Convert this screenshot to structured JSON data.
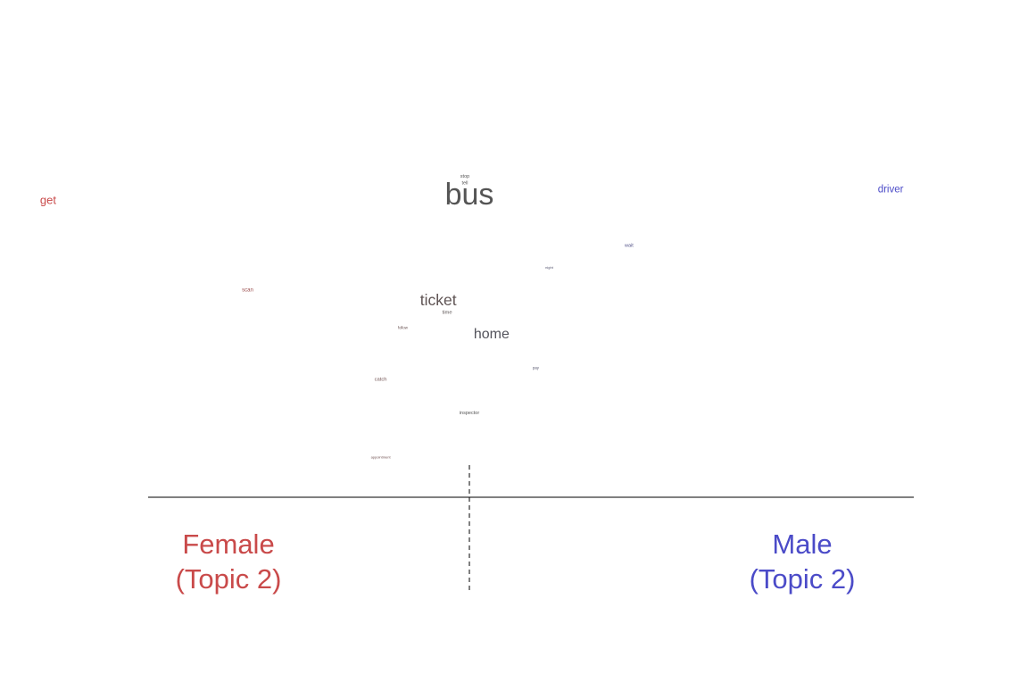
{
  "chart_data": {
    "type": "scatter",
    "words": [
      {
        "text": "bus",
        "x": 0.0,
        "y": 0.97,
        "weight": 1.0
      },
      {
        "text": "stop",
        "x": -0.01,
        "y": 1.06,
        "weight": 0.05
      },
      {
        "text": "tell",
        "x": -0.01,
        "y": 1.03,
        "weight": 0.05
      },
      {
        "text": "driver",
        "x": 0.95,
        "y": 1.0,
        "weight": 0.25
      },
      {
        "text": "get",
        "x": -0.95,
        "y": 0.95,
        "weight": 0.3
      },
      {
        "text": "wait",
        "x": 0.36,
        "y": 0.75,
        "weight": 0.05
      },
      {
        "text": "night",
        "x": 0.18,
        "y": 0.65,
        "weight": 0.0
      },
      {
        "text": "scan",
        "x": -0.5,
        "y": 0.55,
        "weight": 0.07
      },
      {
        "text": "ticket",
        "x": -0.07,
        "y": 0.5,
        "weight": 0.45
      },
      {
        "text": "time",
        "x": -0.05,
        "y": 0.45,
        "weight": 0.06
      },
      {
        "text": "follow",
        "x": -0.15,
        "y": 0.38,
        "weight": 0.01
      },
      {
        "text": "home",
        "x": 0.05,
        "y": 0.35,
        "weight": 0.4
      },
      {
        "text": "pay",
        "x": 0.15,
        "y": 0.2,
        "weight": 0.01
      },
      {
        "text": "catch",
        "x": -0.2,
        "y": 0.15,
        "weight": 0.06
      },
      {
        "text": "inspector",
        "x": 0.0,
        "y": 0.0,
        "weight": 0.05
      },
      {
        "text": "appointment",
        "x": -0.2,
        "y": -0.2,
        "weight": 0.0
      }
    ],
    "colors": {
      "female": "#c94a4a",
      "male": "#4b4bc8",
      "neutral": "#555555"
    },
    "xlim": [
      -1,
      1
    ],
    "ylim": [
      -0.35,
      1.25
    ],
    "labels": {
      "female": [
        "Female",
        "(Topic 2)"
      ],
      "male": [
        "Male",
        "(Topic 2)"
      ]
    }
  }
}
